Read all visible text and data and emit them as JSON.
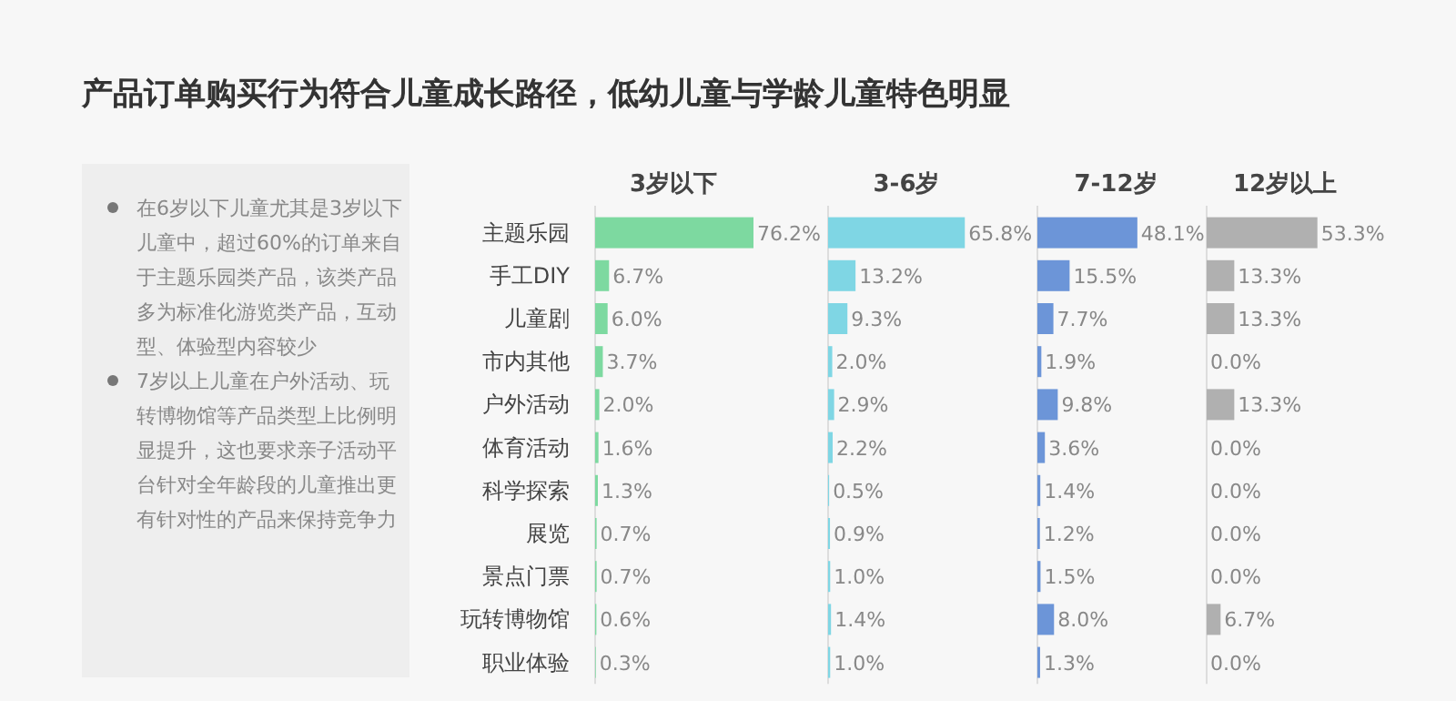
{
  "chart_data": [
    {
      "type": "other",
      "title": "产品订单购买行为符合儿童成长路径，低幼儿童与学龄儿童特色明显",
      "annotations": [
        "在6岁以下儿童尤其是3岁以下儿童中，超过60%的订单来自于主题乐园类产品，该类产品多为标准化游览类产品，互动型、体验型内容较少",
        "7岁以上儿童在户外活动、玩转博物馆等产品类型上比例明显提升，这也要求亲子活动平台针对全年龄段的儿童推出更有针对性的产品来保持竞争力"
      ]
    },
    {
      "type": "bar",
      "orientation": "horizontal",
      "title": "3岁以下",
      "tick_labels": "y",
      "color": "#7dd9a0",
      "categories": [
        "主题乐园",
        "手工DIY",
        "儿童剧",
        "市内其他",
        "户外活动",
        "体育活动",
        "科学探索",
        "展览",
        "景点门票",
        "玩转博物馆",
        "职业体验"
      ],
      "values": [
        76.2,
        6.7,
        6.0,
        3.7,
        2.0,
        1.6,
        1.3,
        0.7,
        0.7,
        0.6,
        0.3
      ],
      "value_labels": [
        "76.2%",
        "6.7%",
        "6.0%",
        "3.7%",
        "2.0%",
        "1.6%",
        "1.3%",
        "0.7%",
        "0.7%",
        "0.6%",
        "0.3%"
      ]
    },
    {
      "type": "bar",
      "orientation": "horizontal",
      "title": "3-6岁",
      "tick_labels": false,
      "color": "#7fd6e4",
      "categories": [
        null,
        null,
        null,
        null,
        null,
        null,
        null,
        null,
        null,
        null,
        null
      ],
      "values": [
        65.8,
        13.2,
        9.3,
        2.0,
        2.9,
        2.2,
        0.5,
        0.9,
        1.0,
        1.4,
        1.0
      ],
      "value_labels": [
        "65.8%",
        "13.2%",
        "9.3%",
        "2.0%",
        "2.9%",
        "2.2%",
        "0.5%",
        "0.9%",
        "1.0%",
        "1.4%",
        "1.0%"
      ]
    },
    {
      "type": "bar",
      "orientation": "horizontal",
      "title": "7-12岁",
      "tick_labels": false,
      "color": "#6c95d8",
      "categories": [
        null,
        null,
        null,
        null,
        null,
        null,
        null,
        null,
        null,
        null,
        null
      ],
      "values": [
        48.1,
        15.5,
        7.7,
        1.9,
        9.8,
        3.6,
        1.4,
        1.2,
        1.5,
        8.0,
        1.3
      ],
      "value_labels": [
        "48.1%",
        "15.5%",
        "7.7%",
        "1.9%",
        "9.8%",
        "3.6%",
        "1.4%",
        "1.2%",
        "1.5%",
        "8.0%",
        "1.3%"
      ]
    },
    {
      "type": "bar",
      "orientation": "horizontal",
      "title": "12岁以上",
      "tick_labels": false,
      "color": "#b0b0b0",
      "categories": [
        null,
        null,
        null,
        null,
        null,
        null,
        null,
        null,
        null,
        null,
        null
      ],
      "values": [
        53.3,
        13.3,
        13.3,
        0.0,
        13.3,
        0.0,
        0.0,
        0.0,
        0.0,
        6.7,
        0.0
      ],
      "value_labels": [
        "53.3%",
        "13.3%",
        "13.3%",
        "0.0%",
        "13.3%",
        "0.0%",
        "0.0%",
        "0.0%",
        "0.0%",
        "6.7%",
        "0.0%"
      ]
    }
  ]
}
